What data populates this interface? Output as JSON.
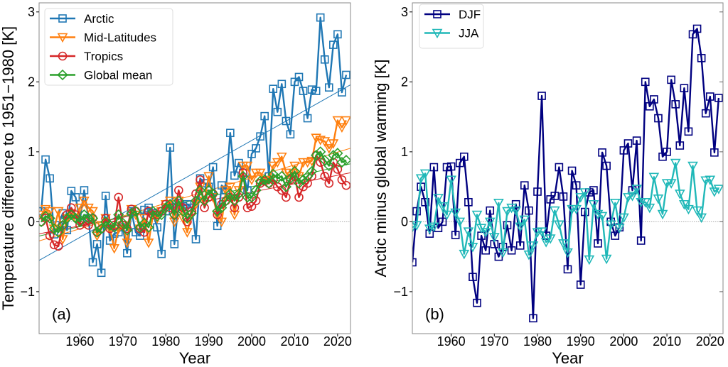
{
  "chart_data": [
    {
      "type": "line",
      "panel_label": "(a)",
      "xlabel": "Year",
      "ylabel": "Temperature difference to 1951−1980 [K]",
      "xlim": [
        1950.5,
        2023
      ],
      "ylim": [
        -1.6,
        3.13
      ],
      "xticks": [
        1960,
        1970,
        1980,
        1990,
        2000,
        2010,
        2020
      ],
      "yticks": [
        -1,
        0,
        1,
        2,
        3
      ],
      "grid": false,
      "zero_line": true,
      "trend_lines": true,
      "legend_position": "top-left",
      "x_start": 1951,
      "series": [
        {
          "name": "Arctic",
          "color": "#1f77b4",
          "marker": "square",
          "values": [
            0.15,
            0.89,
            0.62,
            -0.18,
            -0.05,
            0.12,
            -0.12,
            0.44,
            0.35,
            0.02,
            0.45,
            0.05,
            -0.58,
            -0.32,
            -0.73,
            0.37,
            -0.27,
            -0.17,
            -0.15,
            -0.08,
            -0.45,
            0.15,
            -0.15,
            -0.2,
            0.17,
            0.2,
            0.12,
            -0.08,
            -0.46,
            0.15,
            1.06,
            -0.32,
            0.27,
            0.22,
            0.25,
            0.2,
            -0.25,
            0.62,
            0.55,
            0.5,
            0.78,
            -0.06,
            0.52,
            0.45,
            1.27,
            0.66,
            0.84,
            0.7,
            0.45,
            0.97,
            1.05,
            1.22,
            1.51,
            0.65,
            1.9,
            1.57,
            1.97,
            1.44,
            1.25,
            2.0,
            2.07,
            1.87,
            1.48,
            1.89,
            1.87,
            2.92,
            2.32,
            1.92,
            2.53,
            2.68,
            1.85,
            2.1
          ]
        },
        {
          "name": "Mid-Latitudes",
          "color": "#ff7f0e",
          "marker": "triangle-down",
          "values": [
            0.1,
            0.18,
            0.15,
            -0.1,
            0.15,
            -0.25,
            0.05,
            0.12,
            0.05,
            0.2,
            0.3,
            0.2,
            0.15,
            -0.2,
            -0.05,
            0.05,
            -0.1,
            -0.38,
            -0.1,
            -0.05,
            -0.3,
            0.18,
            0.1,
            -0.1,
            0.05,
            -0.3,
            0.1,
            0.05,
            0.15,
            0.25,
            0.3,
            0.0,
            0.3,
            0.05,
            -0.15,
            0.1,
            0.25,
            0.5,
            0.3,
            0.65,
            0.35,
            0.1,
            0.0,
            0.45,
            0.5,
            0.1,
            0.45,
            0.8,
            0.8,
            0.6,
            0.7,
            0.7,
            0.6,
            0.6,
            0.8,
            0.85,
            0.93,
            0.7,
            0.65,
            0.8,
            0.65,
            0.85,
            0.85,
            0.87,
            1.2,
            1.17,
            1.15,
            1.05,
            1.12,
            1.45,
            1.35,
            1.45
          ]
        },
        {
          "name": "Tropics",
          "color": "#d62728",
          "marker": "circle",
          "values": [
            0.0,
            0.05,
            -0.2,
            -0.33,
            -0.35,
            -0.05,
            0.1,
            0.2,
            0.1,
            -0.05,
            0.0,
            -0.05,
            0.05,
            -0.15,
            -0.1,
            0.05,
            -0.1,
            -0.05,
            0.35,
            -0.05,
            -0.1,
            0.18,
            0.15,
            -0.1,
            -0.15,
            0.15,
            0.1,
            0.1,
            0.15,
            0.25,
            0.2,
            0.1,
            0.45,
            0.2,
            0.0,
            0.15,
            0.4,
            0.6,
            0.2,
            0.35,
            0.4,
            0.1,
            0.25,
            0.3,
            0.35,
            0.2,
            0.35,
            0.7,
            0.2,
            0.22,
            0.3,
            0.55,
            0.58,
            0.55,
            0.6,
            0.5,
            0.45,
            0.35,
            0.6,
            0.65,
            0.35,
            0.5,
            0.55,
            0.65,
            0.95,
            0.85,
            0.65,
            0.55,
            0.85,
            0.75,
            0.6,
            0.52
          ]
        },
        {
          "name": "Global mean",
          "color": "#2ca02c",
          "marker": "diamond",
          "values": [
            0.0,
            0.08,
            0.05,
            -0.1,
            -0.15,
            -0.05,
            0.05,
            0.1,
            0.05,
            0.0,
            0.1,
            0.05,
            0.05,
            -0.15,
            -0.1,
            0.0,
            -0.05,
            -0.08,
            0.1,
            -0.02,
            -0.12,
            0.12,
            0.15,
            -0.08,
            -0.02,
            -0.08,
            0.15,
            0.08,
            0.1,
            0.2,
            0.25,
            0.1,
            0.3,
            0.15,
            0.05,
            0.12,
            0.3,
            0.45,
            0.3,
            0.45,
            0.4,
            0.15,
            0.2,
            0.3,
            0.4,
            0.3,
            0.4,
            0.65,
            0.35,
            0.35,
            0.45,
            0.58,
            0.6,
            0.55,
            0.68,
            0.62,
            0.65,
            0.5,
            0.62,
            0.72,
            0.55,
            0.6,
            0.65,
            0.72,
            0.95,
            1.0,
            0.88,
            0.8,
            0.95,
            0.98,
            0.85,
            0.88
          ]
        }
      ]
    },
    {
      "type": "line",
      "panel_label": "(b)",
      "xlabel": "Year",
      "ylabel": "Arctic minus global warming [K]",
      "xlim": [
        1951,
        2023
      ],
      "ylim": [
        -1.6,
        3.13
      ],
      "xticks": [
        1960,
        1970,
        1980,
        1990,
        2000,
        2010,
        2020
      ],
      "yticks": [
        -1,
        0,
        1,
        2,
        3
      ],
      "grid": false,
      "zero_line": true,
      "trend_lines": false,
      "legend_position": "top-left",
      "x_start": 1951,
      "series": [
        {
          "name": "DJF",
          "color": "#000080",
          "marker": "square",
          "values": [
            -0.58,
            0.15,
            0.5,
            0.28,
            -0.17,
            0.78,
            -0.09,
            0.0,
            0.78,
            0.79,
            -0.19,
            0.84,
            0.93,
            0.28,
            -0.79,
            -1.16,
            -0.2,
            -0.41,
            0.16,
            -0.32,
            -0.5,
            -0.36,
            -0.05,
            -0.41,
            0.25,
            -0.34,
            0.52,
            0.16,
            -1.38,
            0.43,
            1.8,
            -0.2,
            0.32,
            0.37,
            0.78,
            0.36,
            -0.68,
            0.73,
            0.52,
            -0.9,
            0.14,
            0.42,
            0.45,
            -0.31,
            0.99,
            0.8,
            0.0,
            -0.2,
            -0.08,
            1.02,
            1.12,
            0.45,
            1.16,
            -0.27,
            2.0,
            1.65,
            1.75,
            1.48,
            0.93,
            1.0,
            2.03,
            1.68,
            1.09,
            1.91,
            1.29,
            2.68,
            2.76,
            2.34,
            1.55,
            1.79,
            0.99,
            1.77
          ]
        },
        {
          "name": "JJA",
          "color": "#20b8b8",
          "marker": "triangle-down",
          "values": [
            -0.08,
            -0.05,
            0.62,
            0.69,
            -0.1,
            -0.07,
            0.34,
            0.22,
            0.1,
            0.6,
            0.13,
            0.0,
            -0.46,
            -0.14,
            -0.36,
            0.1,
            -0.09,
            -0.15,
            0.0,
            -0.22,
            0.27,
            -0.44,
            0.15,
            0.2,
            0.16,
            -0.07,
            0.03,
            -0.47,
            -0.34,
            -0.15,
            -0.14,
            -0.29,
            -0.24,
            0.16,
            -0.04,
            -0.31,
            -0.44,
            0.18,
            0.18,
            0.35,
            0.42,
            -0.54,
            0.25,
            0.11,
            0.08,
            -0.53,
            -0.04,
            0.27,
            -0.09,
            0.06,
            0.35,
            0.37,
            0.47,
            0.28,
            0.28,
            0.2,
            0.64,
            0.33,
            0.11,
            0.55,
            0.55,
            0.84,
            0.4,
            0.25,
            0.18,
            0.8,
            0.16,
            0.06,
            0.59,
            0.6,
            0.43,
            0.47
          ]
        }
      ]
    }
  ]
}
